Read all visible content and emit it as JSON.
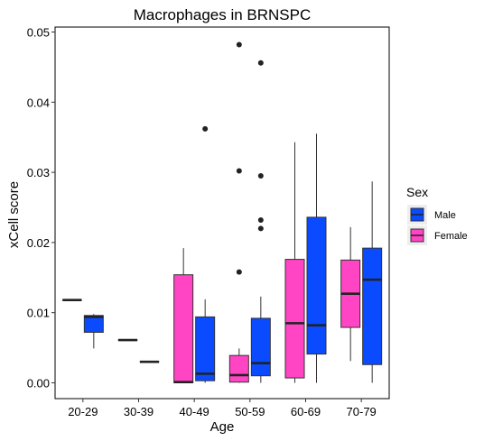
{
  "chart_data": {
    "type": "boxplot",
    "title": "Macrophages in BRNSPC",
    "xlabel": "Age",
    "ylabel": "xCell score",
    "categories": [
      "20-29",
      "30-39",
      "40-49",
      "50-59",
      "60-69",
      "70-79"
    ],
    "y_ticks": [
      "0.00",
      "0.01",
      "0.02",
      "0.03",
      "0.04",
      "0.05"
    ],
    "ylim": [
      -0.0025,
      0.0505
    ],
    "grid": false,
    "legend": {
      "title": "Sex",
      "placement": "right",
      "entries": [
        {
          "label": "Male",
          "color": "#0a4bff"
        },
        {
          "label": "Female",
          "color": "#ff44c4"
        }
      ]
    },
    "series": [
      {
        "name": "Female",
        "color": "#ff44c4",
        "boxes": [
          {
            "category": "20-29",
            "min": 0.0118,
            "q1": 0.0118,
            "median": 0.0118,
            "q3": 0.0118,
            "max": 0.0118,
            "outliers": []
          },
          {
            "category": "30-39",
            "min": 0.0061,
            "q1": 0.0061,
            "median": 0.0061,
            "q3": 0.0061,
            "max": 0.0061,
            "outliers": []
          },
          {
            "category": "40-49",
            "min": 0.0,
            "q1": 0.0,
            "median": 0.0001,
            "q3": 0.0154,
            "max": 0.0192,
            "outliers": []
          },
          {
            "category": "50-59",
            "min": 0.0,
            "q1": 0.0001,
            "median": 0.0011,
            "q3": 0.0039,
            "max": 0.0049,
            "outliers": [
              0.0158,
              0.0302,
              0.0482
            ]
          },
          {
            "category": "60-69",
            "min": 0.0,
            "q1": 0.0007,
            "median": 0.0085,
            "q3": 0.0176,
            "max": 0.0343,
            "outliers": []
          },
          {
            "category": "70-79",
            "min": 0.0031,
            "q1": 0.0079,
            "median": 0.0127,
            "q3": 0.0175,
            "max": 0.0222,
            "outliers": []
          }
        ]
      },
      {
        "name": "Male",
        "color": "#0a4bff",
        "boxes": [
          {
            "category": "20-29",
            "min": 0.0049,
            "q1": 0.0072,
            "median": 0.0094,
            "q3": 0.0096,
            "max": 0.0098,
            "outliers": []
          },
          {
            "category": "30-39",
            "min": 0.003,
            "q1": 0.003,
            "median": 0.003,
            "q3": 0.003,
            "max": 0.003,
            "outliers": []
          },
          {
            "category": "40-49",
            "min": 0.0,
            "q1": 0.0003,
            "median": 0.0013,
            "q3": 0.0094,
            "max": 0.0119,
            "outliers": [
              0.0362
            ]
          },
          {
            "category": "50-59",
            "min": 0.0,
            "q1": 0.001,
            "median": 0.0028,
            "q3": 0.0092,
            "max": 0.0123,
            "outliers": [
              0.022,
              0.0232,
              0.0295,
              0.0456
            ]
          },
          {
            "category": "60-69",
            "min": 0.0,
            "q1": 0.0041,
            "median": 0.0082,
            "q3": 0.0236,
            "max": 0.0355,
            "outliers": []
          },
          {
            "category": "70-79",
            "min": 0.0,
            "q1": 0.0026,
            "median": 0.0147,
            "q3": 0.0192,
            "max": 0.0287,
            "outliers": []
          }
        ]
      }
    ]
  }
}
